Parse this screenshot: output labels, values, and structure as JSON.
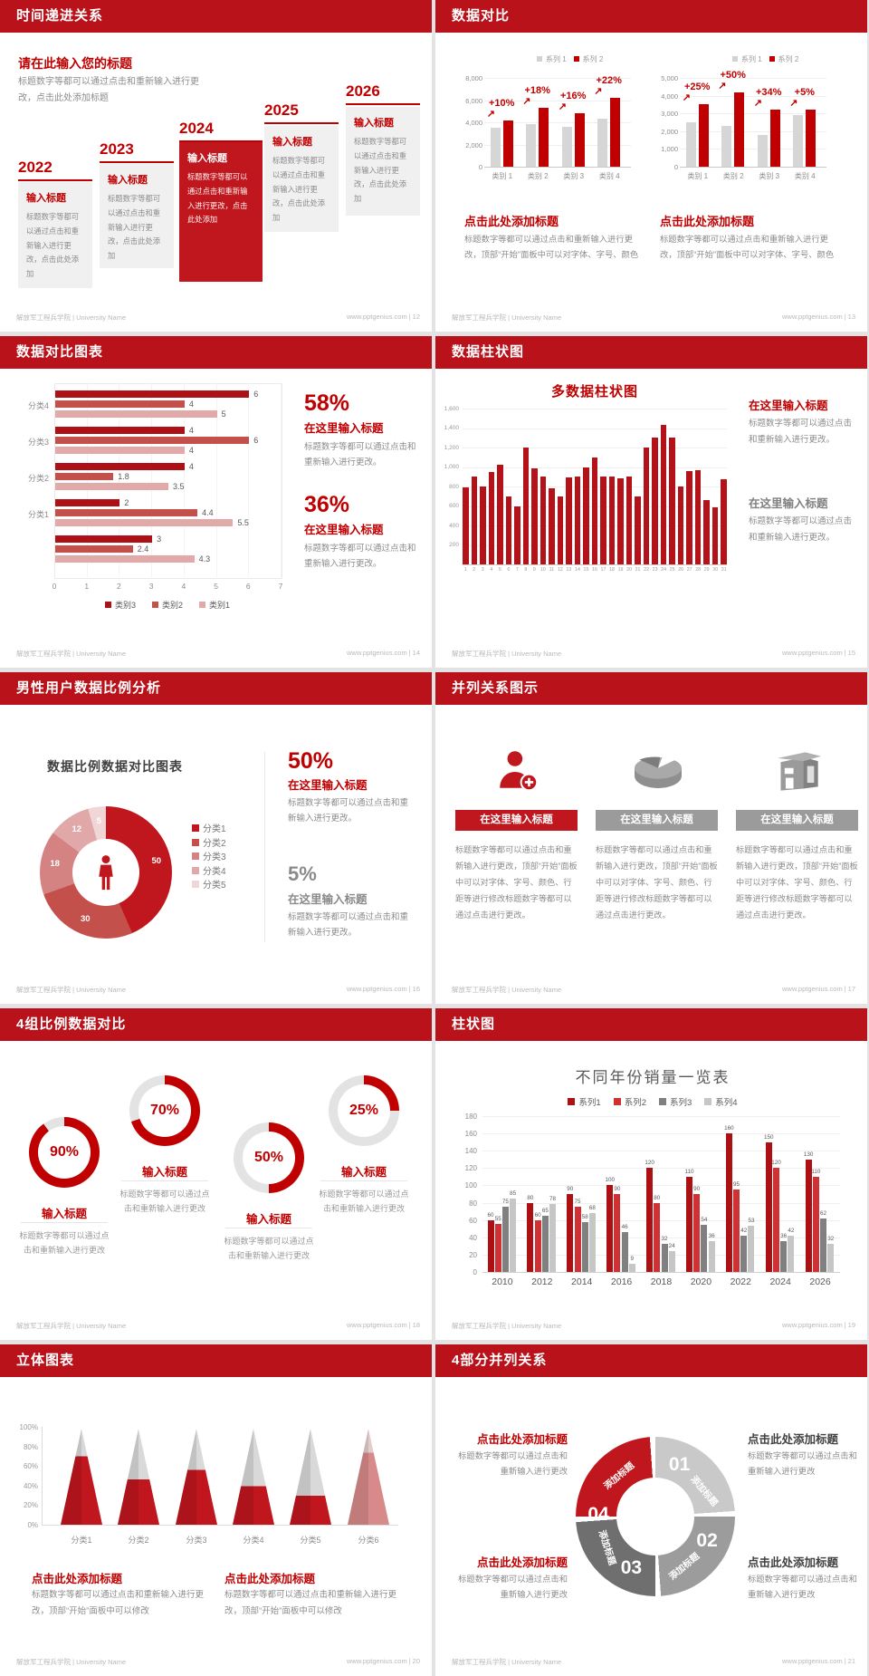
{
  "colors": {
    "header_red": "#b9121b",
    "accent_red": "#c00000",
    "bright_red": "#c0161d",
    "dark_red_bar": "#ad1116",
    "mid_red": "#c4504b",
    "pale_red": "#e2a9a9",
    "gray_bar": "#d6d6d6",
    "dark_gray_text": "#595959",
    "body_gray_text": "#8c8c8c"
  },
  "footer": {
    "left": "解放军工程兵学院 | University Name",
    "site": "www.pptgenius.com",
    "sep": "|"
  },
  "slides": [
    {
      "title": "时间递进关系",
      "page": "12",
      "intro_heading": "请在此输入您的标题",
      "intro_body": "标题数字等都可以通过点击和重新输入进行更改，点击此处添加标题",
      "items": [
        {
          "year": "2022",
          "box_title": "输入标题",
          "box_body": "标题数字等都可以通过点击和重新输入进行更改，点击此处添加",
          "highlight": false
        },
        {
          "year": "2023",
          "box_title": "输入标题",
          "box_body": "标题数字等都可以通过点击和重新输入进行更改，点击此处添加",
          "highlight": false
        },
        {
          "year": "2024",
          "box_title": "输入标题",
          "box_body": "标题数字等都可以通过点击和重新输入进行更改，点击此处添加",
          "highlight": true
        },
        {
          "year": "2025",
          "box_title": "输入标题",
          "box_body": "标题数字等都可以通过点击和重新输入进行更改，点击此处添加",
          "highlight": false
        },
        {
          "year": "2026",
          "box_title": "输入标题",
          "box_body": "标题数字等都可以通过点击和重新输入进行更改，点击此处添加",
          "highlight": false
        }
      ]
    },
    {
      "title": "数据对比",
      "page": "13",
      "legend": [
        "系列 1",
        "系列 2"
      ],
      "charts": [
        {
          "type": "bar",
          "categories": [
            "类别 1",
            "类别 2",
            "类别 3",
            "类别 4"
          ],
          "series1": [
            3500,
            3800,
            3600,
            4300
          ],
          "series2": [
            4200,
            5300,
            4800,
            6200
          ],
          "growth": [
            "+10%",
            "+18%",
            "+16%",
            "+22%"
          ],
          "ymax": 8000,
          "ystep": 2000
        },
        {
          "type": "bar",
          "categories": [
            "类别 1",
            "类别 2",
            "类别 3",
            "类别 4"
          ],
          "series1": [
            2500,
            2300,
            1800,
            2900
          ],
          "series2": [
            3500,
            4200,
            3200,
            3200
          ],
          "growth": [
            "+25%",
            "+50%",
            "+34%",
            "+5%"
          ],
          "ymax": 5000,
          "ystep": 1000
        }
      ],
      "blocks": [
        {
          "heading": "点击此处添加标题",
          "body": "标题数字等都可以通过点击和重新输入进行更改，顶部“开始”面板中可以对字体、字号、颜色"
        },
        {
          "heading": "点击此处添加标题",
          "body": "标题数字等都可以通过点击和重新输入进行更改，顶部“开始”面板中可以对字体、字号、颜色"
        }
      ]
    },
    {
      "title": "数据对比图表",
      "page": "14",
      "chart": {
        "type": "bar-horizontal",
        "groups": [
          {
            "label": "分类4",
            "values": [
              6,
              4,
              5
            ]
          },
          {
            "label": "分类3",
            "values": [
              4,
              6,
              4
            ]
          },
          {
            "label": "分类2",
            "values": [
              4,
              1.8,
              3.5
            ]
          },
          {
            "label": "分类1",
            "values": [
              2,
              4.4,
              5.5
            ]
          },
          {
            "label": "",
            "values": [
              3,
              2.4,
              4.3
            ]
          }
        ],
        "xticks": [
          0,
          1,
          2,
          3,
          4,
          5,
          6,
          7
        ],
        "xmax": 7,
        "legend": [
          "类别3",
          "类别2",
          "类别1"
        ]
      },
      "stats": [
        {
          "pct": "58%",
          "heading": "在这里输入标题",
          "body": "标题数字等都可以通过点击和重新输入进行更改。"
        },
        {
          "pct": "36%",
          "heading": "在这里输入标题",
          "body": "标题数字等都可以通过点击和重新输入进行更改。"
        }
      ]
    },
    {
      "title": "数据柱状图",
      "page": "15",
      "chart": {
        "type": "bar",
        "title": "多数据柱状图",
        "values": [
          790,
          900,
          800,
          950,
          1020,
          700,
          600,
          1200,
          990,
          900,
          780,
          700,
          890,
          900,
          1000,
          1100,
          900,
          900,
          880,
          900,
          700,
          1200,
          1300,
          1430,
          1300,
          800,
          960,
          970,
          660,
          590,
          870
        ],
        "yticks": [
          200,
          400,
          600,
          800,
          1000,
          1200,
          1400,
          1600
        ],
        "ymax": 1600
      },
      "blocks": [
        {
          "heading": "在这里输入标题",
          "body": "标题数字等都可以通过点击和重新输入进行更改。",
          "style": "red"
        },
        {
          "heading": "在这里输入标题",
          "body": "标题数字等都可以通过点击和重新输入进行更改。",
          "style": "gray"
        }
      ]
    },
    {
      "title": "男性用户数据比例分析",
      "page": "16",
      "chart_title": "数据比例数据对比图表",
      "donut": {
        "type": "pie",
        "values": [
          50,
          30,
          18,
          12,
          5
        ],
        "labels": [
          "50",
          "30",
          "18",
          "12",
          "5"
        ],
        "legend": [
          "分类1",
          "分类2",
          "分类3",
          "分类4",
          "分类5"
        ],
        "colors": [
          "#c0161d",
          "#c4504b",
          "#d48282",
          "#e0a8a8",
          "#f0d6d6"
        ]
      },
      "stats": [
        {
          "pct": "50%",
          "heading": "在这里输入标题",
          "body": "标题数字等都可以通过点击和重新输入进行更改。",
          "style": "red"
        },
        {
          "pct": "5%",
          "heading": "在这里输入标题",
          "body": "标题数字等都可以通过点击和重新输入进行更改。",
          "style": "gray"
        }
      ]
    },
    {
      "title": "并列关系图示",
      "page": "17",
      "items": [
        {
          "icon": "person-add-icon",
          "ribbon": "在这里输入标题",
          "highlight": true,
          "body": "标题数字等都可以通过点击和重新输入进行更改，顶部“开始”面板中可以对字体、字号、颜色、行距等进行修改标题数字等都可以通过点击进行更改。"
        },
        {
          "icon": "pie-3d-icon",
          "ribbon": "在这里输入标题",
          "highlight": false,
          "body": "标题数字等都可以通过点击和重新输入进行更改，顶部“开始”面板中可以对字体、字号、颜色、行距等进行修改标题数字等都可以通过点击进行更改。"
        },
        {
          "icon": "building-icon",
          "ribbon": "在这里输入标题",
          "highlight": false,
          "body": "标题数字等都可以通过点击和重新输入进行更改，顶部“开始”面板中可以对字体、字号、颜色、行距等进行修改标题数字等都可以通过点击进行更改。"
        }
      ]
    },
    {
      "title": "4组比例数据对比",
      "page": "18",
      "rings": [
        {
          "pct": 90,
          "label": "90%",
          "heading": "输入标题",
          "body": "标题数字等都可以通过点击和重新输入进行更改"
        },
        {
          "pct": 70,
          "label": "70%",
          "heading": "输入标题",
          "body": "标题数字等都可以通过点击和重新输入进行更改"
        },
        {
          "pct": 50,
          "label": "50%",
          "heading": "输入标题",
          "body": "标题数字等都可以通过点击和重新输入进行更改"
        },
        {
          "pct": 25,
          "label": "25%",
          "heading": "输入标题",
          "body": "标题数字等都可以通过点击和重新输入进行更改"
        }
      ]
    },
    {
      "title": "柱状图",
      "page": "19",
      "chart": {
        "type": "bar",
        "title": "不同年份销量一览表",
        "legend": [
          "系列1",
          "系列2",
          "系列3",
          "系列4"
        ],
        "series_colors": [
          "#ad1013",
          "#cf3234",
          "#808080",
          "#c6c6c6"
        ],
        "categories": [
          "2010",
          "2012",
          "2014",
          "2016",
          "2018",
          "2020",
          "2022",
          "2024",
          "2026"
        ],
        "series": [
          [
            60,
            80,
            90,
            100,
            120,
            110,
            160,
            150,
            130
          ],
          [
            55,
            60,
            75,
            90,
            80,
            90,
            95,
            120,
            110
          ],
          [
            75,
            65,
            58,
            46,
            32,
            54,
            42,
            36,
            62
          ],
          [
            85,
            78,
            68,
            9,
            24,
            36,
            53,
            42,
            32
          ]
        ],
        "yticks": [
          0,
          20,
          40,
          60,
          80,
          100,
          120,
          140,
          160,
          180
        ],
        "ymax": 180
      }
    },
    {
      "title": "立体图表",
      "page": "20",
      "chart": {
        "type": "bar",
        "categories": [
          "分类1",
          "分类2",
          "分类3",
          "分类4",
          "分类5",
          "分类6"
        ],
        "values_pct": [
          71,
          47,
          57,
          40,
          30,
          75
        ],
        "yticks": [
          "100%",
          "80%",
          "60%",
          "40%",
          "20%",
          "0%"
        ]
      },
      "blocks": [
        {
          "heading": "点击此处添加标题",
          "body": "标题数字等都可以通过点击和重新输入进行更改，顶部“开始”面板中可以修改"
        },
        {
          "heading": "点击此处添加标题",
          "body": "标题数字等都可以通过点击和重新输入进行更改，顶部“开始”面板中可以修改"
        }
      ]
    },
    {
      "title": "4部分并列关系",
      "page": "21",
      "wheel": {
        "segments": [
          {
            "num": "01",
            "label": "添加标题",
            "color": "#c9c9c9"
          },
          {
            "num": "02",
            "label": "添加标题",
            "color": "#9c9c9c"
          },
          {
            "num": "03",
            "label": "添加标题",
            "color": "#6f6f6f"
          },
          {
            "num": "04",
            "label": "添加标题",
            "color": "#c0161d"
          }
        ]
      },
      "blocks": [
        {
          "heading": "点击此处添加标题",
          "body": "标题数字等都可以通过点击和重新输入进行更改",
          "style": "red",
          "pos": "tl"
        },
        {
          "heading": "点击此处添加标题",
          "body": "标题数字等都可以通过点击和重新输入进行更改",
          "style": "dark",
          "pos": "tr"
        },
        {
          "heading": "点击此处添加标题",
          "body": "标题数字等都可以通过点击和重新输入进行更改",
          "style": "red",
          "pos": "bl"
        },
        {
          "heading": "点击此处添加标题",
          "body": "标题数字等都可以通过点击和重新输入进行更改",
          "style": "dark",
          "pos": "br"
        }
      ]
    }
  ]
}
